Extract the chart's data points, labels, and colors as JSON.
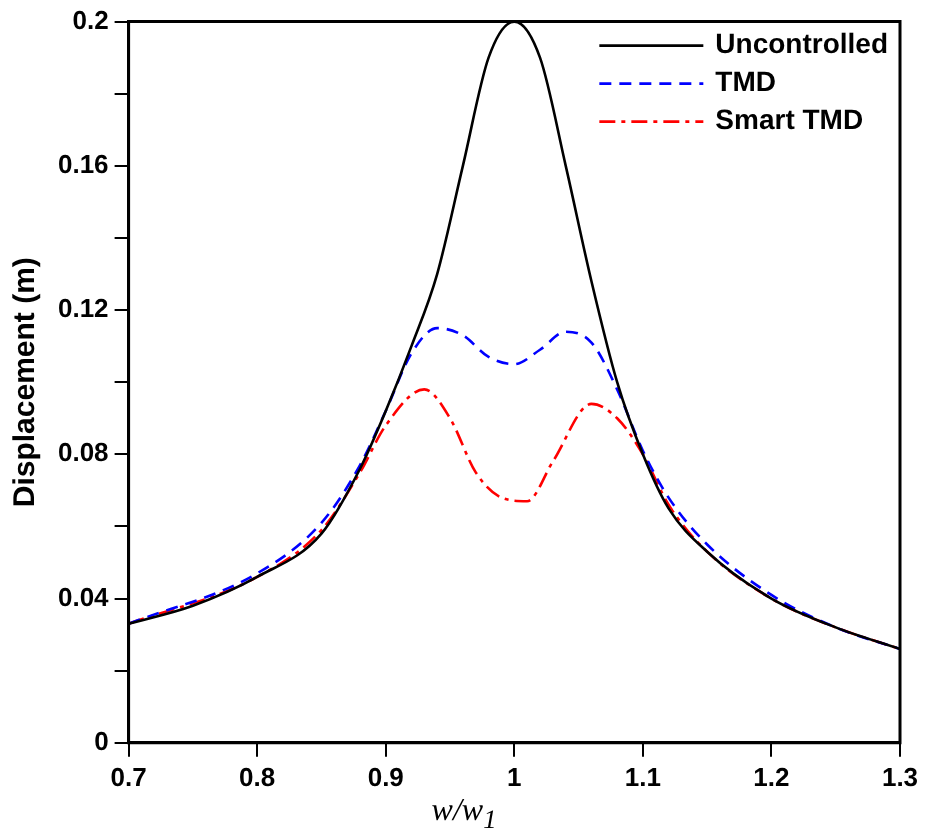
{
  "chart_data": {
    "type": "line",
    "xlabel": "w/w$_{1}$",
    "ylabel": "Displacement (m)",
    "xlim": [
      0.7,
      1.3
    ],
    "xticks": [
      0.7,
      0.8,
      0.9,
      1,
      1.1,
      1.2,
      1.3
    ],
    "ylim": [
      0,
      0.2
    ],
    "yticks": [
      0,
      {
        "value": 0.02,
        "label": null
      },
      0.04,
      {
        "value": 0.06,
        "label": null
      },
      0.08,
      {
        "value": 0.1,
        "label": null
      },
      0.12,
      {
        "value": 0.14,
        "label": null
      },
      0.16,
      {
        "value": 0.18,
        "label": null
      },
      0.2
    ],
    "grid": false,
    "legend": "top right",
    "marker": "none",
    "series": [
      {
        "name": "Uncontrolled",
        "color": "#000000",
        "line_style": "solid",
        "x": [
          0.7,
          0.75,
          0.8,
          0.85,
          0.88,
          0.9,
          0.92,
          0.94,
          0.96,
          0.98,
          1.0,
          1.02,
          1.04,
          1.06,
          1.08,
          1.1,
          1.12,
          1.15,
          1.2,
          1.25,
          1.3
        ],
        "values": [
          0.033,
          0.038,
          0.046,
          0.058,
          0.076,
          0.092,
          0.11,
          0.13,
          0.16,
          0.19,
          0.2,
          0.19,
          0.16,
          0.128,
          0.1,
          0.08,
          0.065,
          0.053,
          0.04,
          0.032,
          0.026
        ]
      },
      {
        "name": "TMD",
        "color": "#0000ff",
        "line_style": "dashed",
        "x": [
          0.7,
          0.8,
          0.85,
          0.88,
          0.9,
          0.92,
          0.94,
          0.96,
          0.98,
          1.0,
          1.02,
          1.04,
          1.06,
          1.08,
          1.1,
          1.12,
          1.15,
          1.2,
          1.25,
          1.3
        ],
        "values": [
          0.033,
          0.047,
          0.061,
          0.077,
          0.092,
          0.108,
          0.115,
          0.113,
          0.107,
          0.105,
          0.109,
          0.114,
          0.111,
          0.098,
          0.081,
          0.068,
          0.055,
          0.041,
          0.032,
          0.026
        ]
      },
      {
        "name": "Smart TMD",
        "color": "#ff0000",
        "line_style": "dashdot",
        "x": [
          0.7,
          0.8,
          0.85,
          0.88,
          0.9,
          0.93,
          0.95,
          0.97,
          0.99,
          1.01,
          1.03,
          1.06,
          1.08,
          1.1,
          1.12,
          1.15,
          1.2,
          1.25,
          1.3
        ],
        "values": [
          0.033,
          0.046,
          0.059,
          0.075,
          0.088,
          0.098,
          0.09,
          0.075,
          0.068,
          0.067,
          0.078,
          0.094,
          0.09,
          0.08,
          0.066,
          0.053,
          0.04,
          0.032,
          0.026
        ]
      }
    ]
  }
}
